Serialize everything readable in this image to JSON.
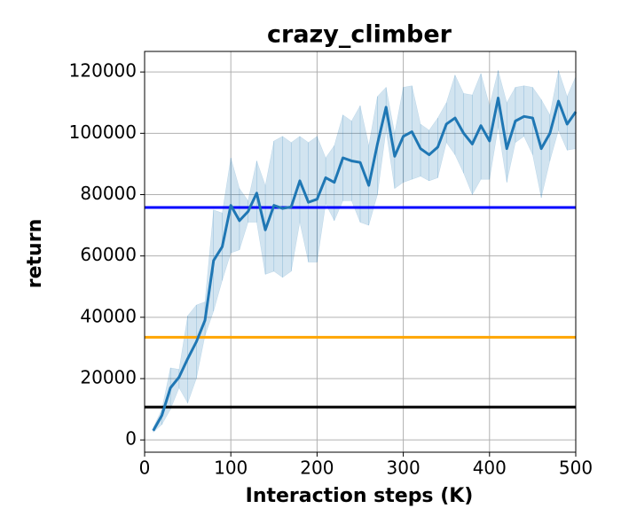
{
  "chart_data": {
    "type": "line",
    "title": "crazy_climber",
    "xlabel": "Interaction steps (K)",
    "ylabel": "return",
    "x": [
      10,
      20,
      30,
      40,
      50,
      60,
      70,
      80,
      90,
      100,
      110,
      120,
      130,
      140,
      150,
      160,
      170,
      180,
      190,
      200,
      210,
      220,
      230,
      240,
      250,
      260,
      270,
      280,
      290,
      300,
      310,
      320,
      330,
      340,
      350,
      360,
      370,
      380,
      390,
      400,
      410,
      420,
      430,
      440,
      450,
      460,
      470,
      480,
      490,
      500
    ],
    "values": [
      3000,
      8000,
      17000,
      20500,
      26500,
      32000,
      39000,
      58500,
      63000,
      76500,
      71500,
      74500,
      80500,
      68500,
      76500,
      75500,
      76000,
      84500,
      77500,
      78500,
      85500,
      84000,
      92000,
      91000,
      90500,
      83000,
      96500,
      108500,
      92500,
      99000,
      100500,
      95000,
      93000,
      95500,
      103000,
      105000,
      100000,
      96500,
      102500,
      97500,
      111500,
      95000,
      104000,
      105500,
      105000,
      95000,
      100000,
      110500,
      103000,
      107000
    ],
    "upper": [
      4000,
      10000,
      23500,
      23000,
      40500,
      44000,
      45000,
      75000,
      74000,
      92000,
      82000,
      78000,
      91000,
      83000,
      97500,
      99000,
      97000,
      99000,
      97000,
      99000,
      92000,
      96000,
      106000,
      104000,
      109000,
      96000,
      112000,
      115000,
      100000,
      115000,
      115500,
      103000,
      101000,
      105000,
      110000,
      119000,
      113000,
      112500,
      119500,
      109000,
      120500,
      110000,
      115000,
      115500,
      115000,
      111000,
      106000,
      120500,
      112000,
      118500
    ],
    "lower": [
      2500,
      5000,
      10000,
      17000,
      12000,
      20000,
      34000,
      42000,
      52000,
      61000,
      62000,
      71000,
      71000,
      54000,
      55000,
      53000,
      55000,
      71000,
      58000,
      58000,
      77000,
      71500,
      78000,
      78000,
      71000,
      70000,
      80000,
      101000,
      82000,
      84000,
      85000,
      86000,
      84500,
      85500,
      97000,
      93000,
      87000,
      80000,
      85000,
      85000,
      102000,
      84000,
      97000,
      99000,
      93000,
      79000,
      91000,
      101000,
      94500,
      95000
    ],
    "color": "#1f77b4",
    "band_color": "#1f77b4",
    "hlines": [
      {
        "value": 75800,
        "color": "#0000ff"
      },
      {
        "value": 33500,
        "color": "#ffa500"
      },
      {
        "value": 10700,
        "color": "#000000"
      }
    ],
    "xlim": [
      0,
      500
    ],
    "ylim": [
      -4000,
      126700
    ],
    "xticks": [
      0,
      100,
      200,
      300,
      400,
      500
    ],
    "yticks": [
      0,
      20000,
      40000,
      60000,
      80000,
      100000,
      120000
    ],
    "grid": true
  }
}
